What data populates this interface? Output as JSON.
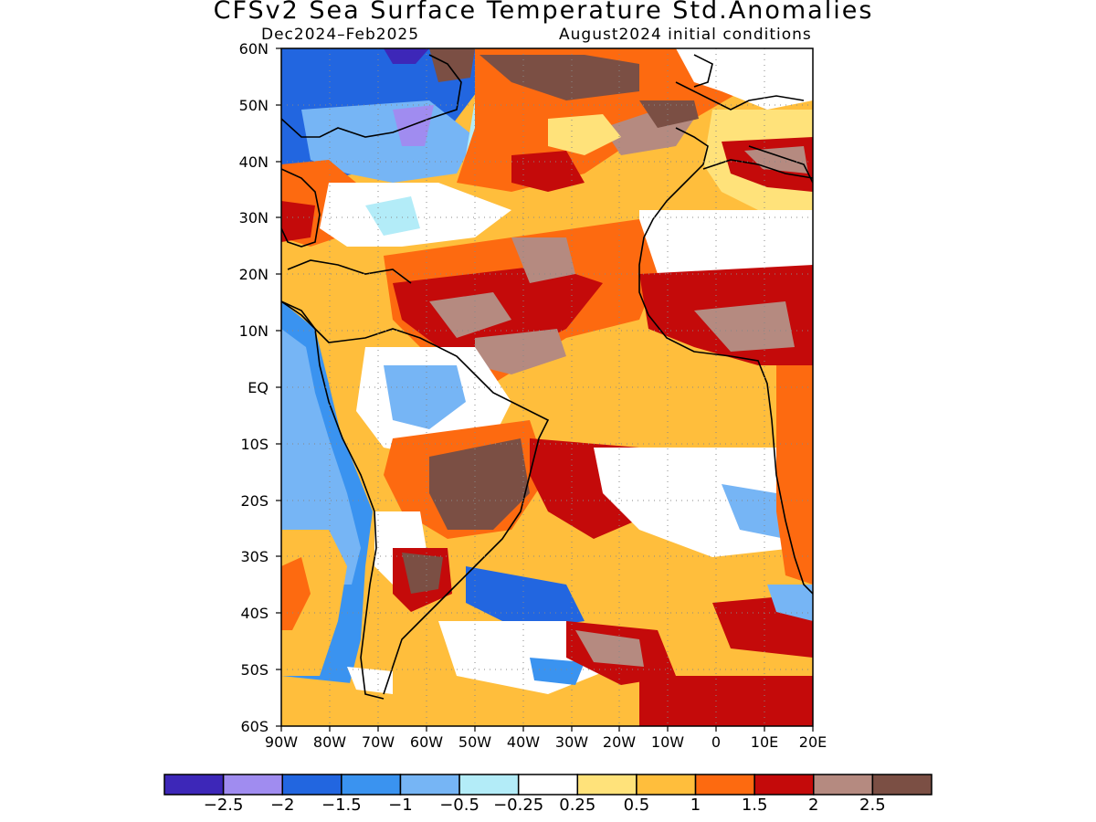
{
  "header": {
    "title": "CFSv2 Sea Surface Temperature Std.Anomalies",
    "valid_period": "Dec2024–Feb2025",
    "init_conditions": "August2024 initial conditions"
  },
  "map": {
    "projection": "lat-lon",
    "lon_range": [
      -90,
      20
    ],
    "lat_range": [
      -60,
      60
    ],
    "lat_labels": [
      "60N",
      "50N",
      "40N",
      "30N",
      "20N",
      "10N",
      "EQ",
      "10S",
      "20S",
      "30S",
      "40S",
      "50S",
      "60S"
    ],
    "lon_labels": [
      "90W",
      "80W",
      "70W",
      "60W",
      "50W",
      "40W",
      "30W",
      "20W",
      "10W",
      "0",
      "10E",
      "20E"
    ],
    "gridlines": "dotted"
  },
  "legend": {
    "colors": [
      "#3d27b8",
      "#a08cf0",
      "#2266e0",
      "#3a93f0",
      "#76b5f5",
      "#b3ecf8",
      "#ffffff",
      "#ffe27a",
      "#ffbe3c",
      "#fd6a10",
      "#c40a0a",
      "#b58a80",
      "#7b4f44"
    ],
    "labels": [
      "−2.5",
      "−2",
      "−1.5",
      "−1",
      "−0.5",
      "−0.25",
      "0.25",
      "0.5",
      "1",
      "1.5",
      "2",
      "2.5"
    ]
  }
}
